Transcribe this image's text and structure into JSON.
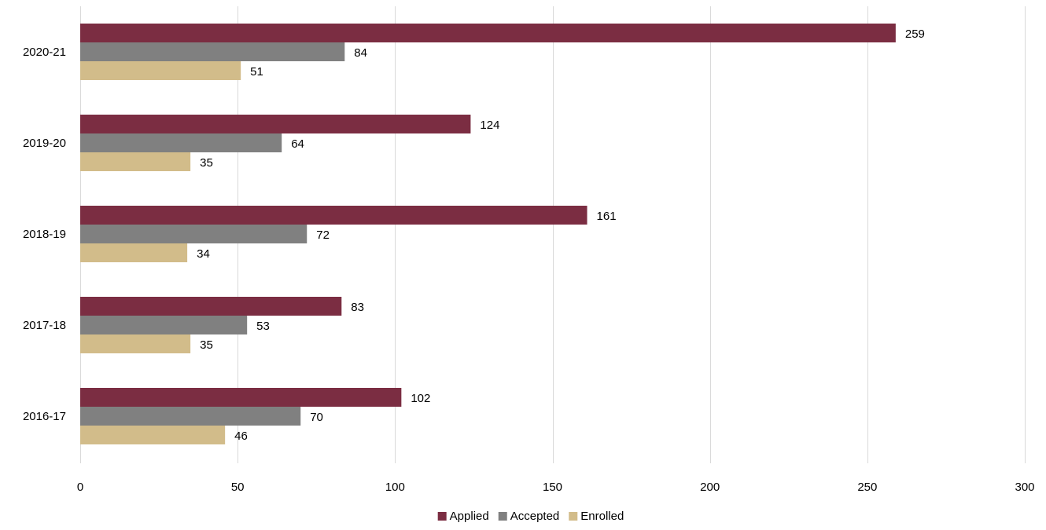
{
  "chart_data": {
    "type": "bar",
    "orientation": "horizontal",
    "categories": [
      "2016-17",
      "2017-18",
      "2018-19",
      "2019-20",
      "2020-21"
    ],
    "series": [
      {
        "name": "Applied",
        "color": "#7b2d42",
        "values": [
          102,
          83,
          161,
          124,
          259
        ]
      },
      {
        "name": "Accepted",
        "color": "#808080",
        "values": [
          70,
          53,
          72,
          64,
          84
        ]
      },
      {
        "name": "Enrolled",
        "color": "#d2bc8a",
        "values": [
          46,
          35,
          34,
          35,
          51
        ]
      }
    ],
    "xlim": [
      0,
      300
    ],
    "x_ticks": [
      0,
      50,
      100,
      150,
      200,
      250,
      300
    ],
    "grid": "vertical",
    "legend": "bottom-center",
    "data_labels": true
  }
}
